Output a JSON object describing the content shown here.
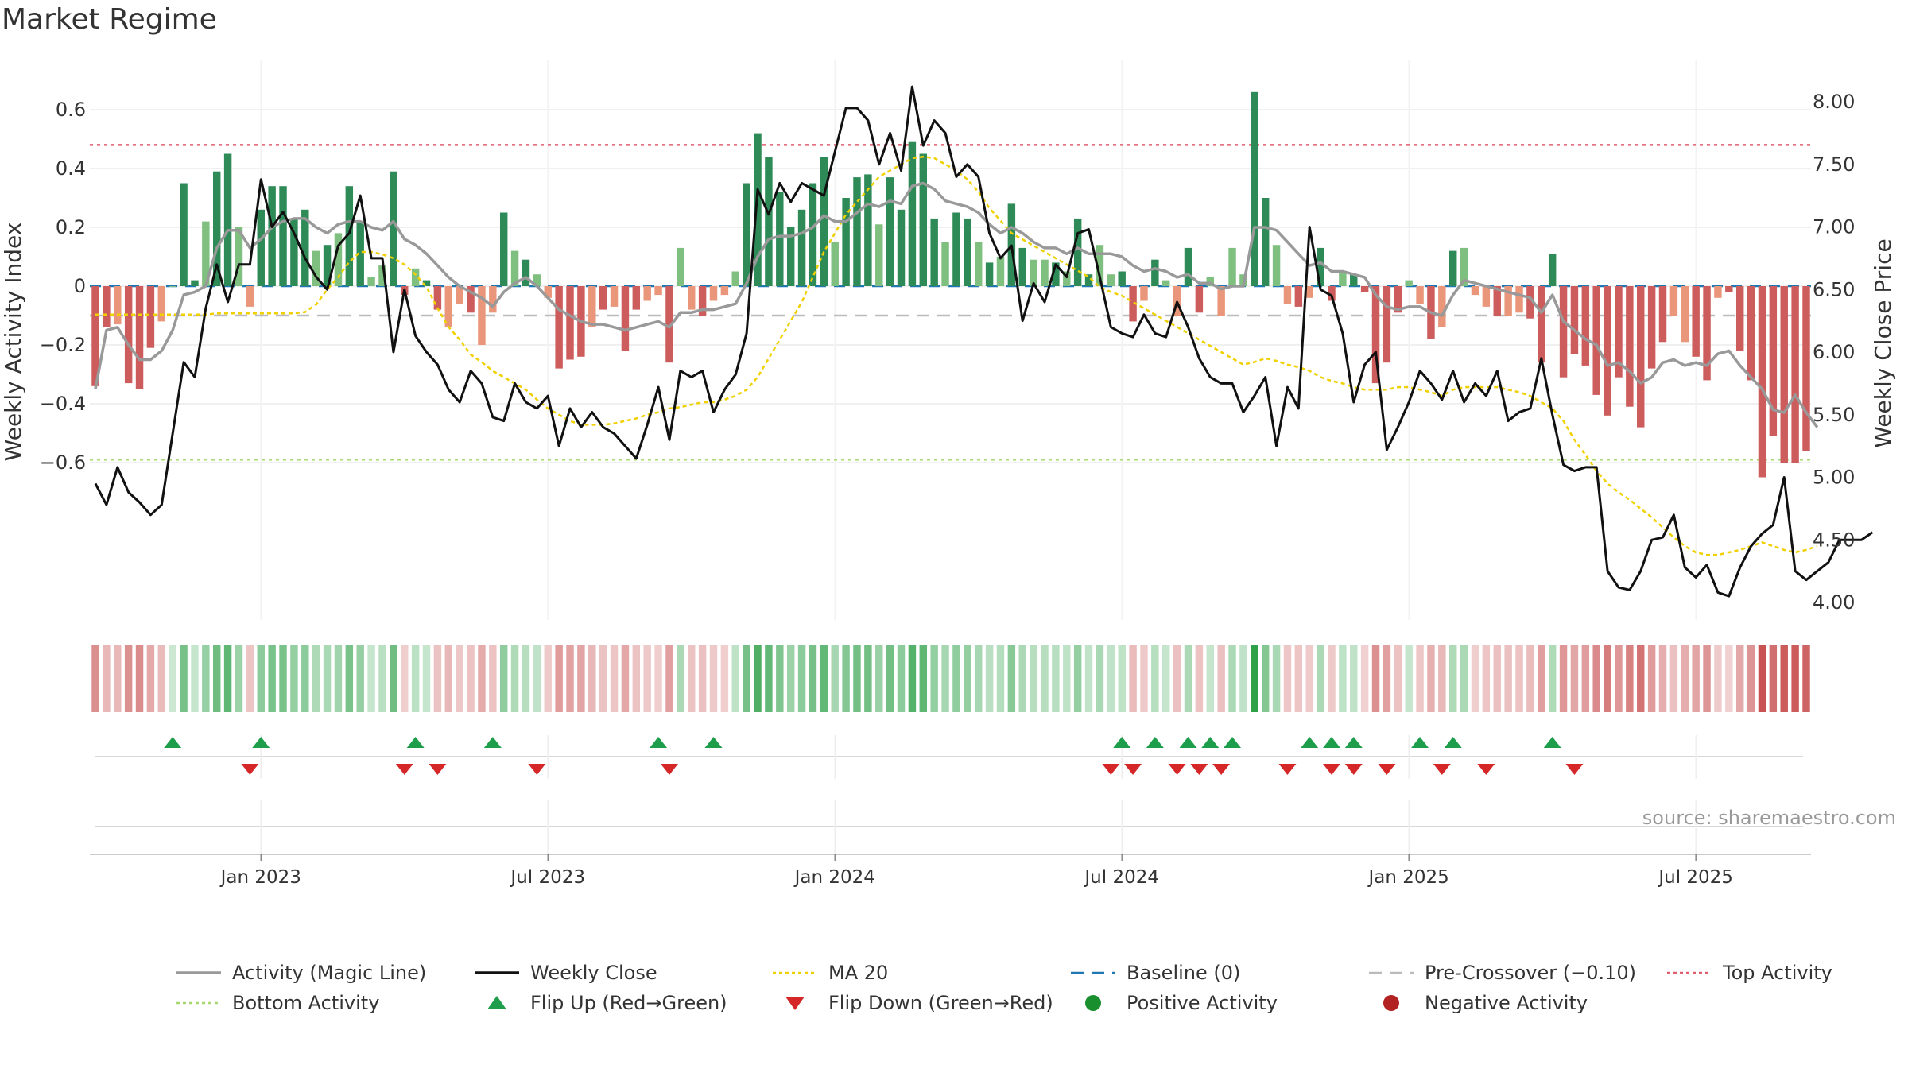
{
  "title": "Market Regime",
  "source": "source: sharemaestro.com",
  "colors": {
    "strong_green": "#2e8b57",
    "light_green": "#7fbf7f",
    "strong_red": "#cd5c5c",
    "light_red": "#e9967a",
    "magic_line": "#999999",
    "close_line": "#111111",
    "ma20": "#f0d000",
    "baseline": "#1f77b4",
    "precross": "#bbbbbb",
    "top": "#e06070",
    "bottom": "#a8d870",
    "flip_up": "#1e9e4a",
    "flip_down": "#d62728",
    "pos_activity": "#1a8f2e",
    "neg_activity": "#b22222"
  },
  "chart_data": {
    "type": "bar",
    "ylabel_left": "Weekly Activity Index",
    "ylabel_right": "Weekly Close Price",
    "ylim_left": [
      -0.7,
      0.72
    ],
    "ylim_right": [
      3.85,
      8.15
    ],
    "left_ticks": [
      {
        "v": 0.6,
        "label": "0.6"
      },
      {
        "v": 0.4,
        "label": "0.4"
      },
      {
        "v": 0.2,
        "label": "0.2"
      },
      {
        "v": 0,
        "label": "0"
      },
      {
        "v": -0.2,
        "label": "−0.2"
      },
      {
        "v": -0.4,
        "label": "−0.4"
      },
      {
        "v": -0.6,
        "label": "−0.6"
      }
    ],
    "right_ticks": [
      "8.00",
      "7.50",
      "7.00",
      "6.50",
      "6.00",
      "5.50",
      "5.00",
      "4.50",
      "4.00"
    ],
    "top_activity": 0.48,
    "bottom_activity": -0.59,
    "pre_crossover": -0.1,
    "baseline": 0,
    "x_ticks": [
      {
        "label": "Jan 2023",
        "week": 15
      },
      {
        "label": "Jul 2023",
        "week": 41
      },
      {
        "label": "Jan 2024",
        "week": 67
      },
      {
        "label": "Jul 2024",
        "week": 93
      },
      {
        "label": "Jan 2025",
        "week": 119
      },
      {
        "label": "Jul 2025",
        "week": 145
      }
    ],
    "activity": [
      -0.34,
      -0.14,
      -0.13,
      -0.33,
      -0.35,
      -0.21,
      -0.12,
      0,
      0.35,
      0.02,
      0.22,
      0.39,
      0.45,
      0.2,
      -0.07,
      0.26,
      0.34,
      0.34,
      0.23,
      0.26,
      0.12,
      0.14,
      0.18,
      0.34,
      0.22,
      0.03,
      0.07,
      0.39,
      -0.03,
      0.06,
      0.02,
      -0.08,
      -0.14,
      -0.06,
      -0.09,
      -0.2,
      -0.09,
      0.25,
      0.12,
      0.09,
      0.04,
      -0.04,
      -0.28,
      -0.25,
      -0.24,
      -0.14,
      -0.08,
      -0.07,
      -0.22,
      -0.08,
      -0.05,
      -0.03,
      -0.26,
      0.13,
      -0.08,
      -0.1,
      -0.05,
      -0.03,
      0.05,
      0.35,
      0.52,
      0.44,
      0.32,
      0.2,
      0.26,
      0.35,
      0.44,
      0.15,
      0.3,
      0.37,
      0.38,
      0.21,
      0.37,
      0.26,
      0.49,
      0.45,
      0.23,
      0.15,
      0.25,
      0.23,
      0.15,
      0.08,
      0.1,
      0.28,
      0.13,
      0.09,
      0.09,
      0.08,
      0.05,
      0.23,
      0.04,
      0.14,
      0.04,
      0.05,
      -0.12,
      -0.05,
      0.09,
      0.02,
      -0.1,
      0.13,
      -0.09,
      0.03,
      -0.1,
      0.13,
      0.04,
      0.66,
      0.3,
      0.14,
      -0.06,
      -0.07,
      -0.04,
      0.13,
      -0.05,
      0.05,
      0.04,
      -0.02,
      -0.33,
      -0.26,
      -0.09,
      0.02,
      -0.06,
      -0.18,
      -0.14,
      0.12,
      0.13,
      -0.03,
      -0.07,
      -0.1,
      -0.1,
      -0.09,
      -0.11,
      -0.26,
      0.11,
      -0.31,
      -0.23,
      -0.27,
      -0.37,
      -0.44,
      -0.31,
      -0.41,
      -0.48,
      -0.28,
      -0.19,
      -0.1,
      -0.19,
      -0.24,
      -0.32,
      -0.04,
      -0.02,
      -0.22,
      -0.32,
      -0.65,
      -0.51,
      -0.6,
      -0.6,
      -0.56
    ],
    "magic_line": [
      -0.35,
      -0.15,
      -0.14,
      -0.2,
      -0.25,
      -0.25,
      -0.22,
      -0.15,
      -0.03,
      -0.02,
      0,
      0.13,
      0.19,
      0.19,
      0.13,
      0.16,
      0.2,
      0.22,
      0.23,
      0.23,
      0.2,
      0.18,
      0.21,
      0.22,
      0.22,
      0.2,
      0.19,
      0.22,
      0.16,
      0.14,
      0.11,
      0.07,
      0.03,
      0,
      -0.02,
      -0.04,
      -0.07,
      -0.02,
      0.01,
      0.03,
      0,
      -0.04,
      -0.08,
      -0.1,
      -0.12,
      -0.13,
      -0.13,
      -0.14,
      -0.15,
      -0.14,
      -0.13,
      -0.12,
      -0.14,
      -0.09,
      -0.09,
      -0.08,
      -0.08,
      -0.07,
      -0.06,
      0.01,
      0.1,
      0.16,
      0.17,
      0.17,
      0.18,
      0.2,
      0.24,
      0.22,
      0.22,
      0.25,
      0.28,
      0.27,
      0.29,
      0.28,
      0.34,
      0.35,
      0.33,
      0.29,
      0.28,
      0.27,
      0.25,
      0.21,
      0.18,
      0.2,
      0.18,
      0.15,
      0.13,
      0.13,
      0.11,
      0.13,
      0.11,
      0.11,
      0.11,
      0.1,
      0.07,
      0.05,
      0.06,
      0.05,
      0.03,
      0.04,
      0.01,
      0.01,
      -0.01,
      0,
      0,
      0.2,
      0.2,
      0.19,
      0.15,
      0.11,
      0.07,
      0.08,
      0.05,
      0.05,
      0.04,
      0.03,
      -0.03,
      -0.07,
      -0.08,
      -0.07,
      -0.07,
      -0.09,
      -0.1,
      -0.03,
      0.02,
      0.01,
      0,
      -0.01,
      -0.02,
      -0.03,
      -0.04,
      -0.09,
      -0.03,
      -0.12,
      -0.15,
      -0.18,
      -0.2,
      -0.27,
      -0.26,
      -0.29,
      -0.33,
      -0.31,
      -0.26,
      -0.25,
      -0.27,
      -0.26,
      -0.27,
      -0.23,
      -0.22,
      -0.27,
      -0.31,
      -0.35,
      -0.42,
      -0.43,
      -0.37,
      -0.43,
      -0.48
    ],
    "weekly_close": [
      4.95,
      4.78,
      5.08,
      4.88,
      4.8,
      4.7,
      4.78,
      5.35,
      5.92,
      5.8,
      6.35,
      6.7,
      6.4,
      6.7,
      6.7,
      7.38,
      7.0,
      7.12,
      6.95,
      6.75,
      6.6,
      6.5,
      6.85,
      6.95,
      7.25,
      6.75,
      6.75,
      6.0,
      6.5,
      6.13,
      6.0,
      5.9,
      5.7,
      5.6,
      5.85,
      5.75,
      5.48,
      5.45,
      5.75,
      5.6,
      5.55,
      5.65,
      5.25,
      5.55,
      5.4,
      5.52,
      5.4,
      5.35,
      5.25,
      5.15,
      5.42,
      5.72,
      5.3,
      5.85,
      5.8,
      5.85,
      5.52,
      5.7,
      5.82,
      6.15,
      7.3,
      7.1,
      7.35,
      7.2,
      7.35,
      7.3,
      7.25,
      7.6,
      7.95,
      7.95,
      7.85,
      7.5,
      7.75,
      7.45,
      8.12,
      7.65,
      7.85,
      7.75,
      7.4,
      7.5,
      7.4,
      6.95,
      6.75,
      6.85,
      6.25,
      6.55,
      6.4,
      6.7,
      6.6,
      6.95,
      6.98,
      6.6,
      6.2,
      6.15,
      6.12,
      6.3,
      6.15,
      6.12,
      6.4,
      6.2,
      5.95,
      5.8,
      5.75,
      5.75,
      5.52,
      5.65,
      5.8,
      5.25,
      5.72,
      5.55,
      7.0,
      6.5,
      6.45,
      6.15,
      5.6,
      5.9,
      6.0,
      5.22,
      5.4,
      5.6,
      5.85,
      5.75,
      5.62,
      5.85,
      5.6,
      5.75,
      5.65,
      5.85,
      5.45,
      5.52,
      5.55,
      5.95,
      5.5,
      5.1,
      5.05,
      5.08,
      5.08,
      4.25,
      4.12,
      4.1,
      4.25,
      4.5,
      4.52,
      4.7,
      4.28,
      4.2,
      4.3,
      4.08,
      4.05,
      4.28,
      4.45,
      4.55,
      4.62,
      5.0,
      4.25,
      4.18,
      4.25,
      4.32,
      4.5,
      4.5,
      4.5,
      4.56
    ],
    "ma20": [
      6.3,
      6.3,
      6.3,
      6.3,
      6.3,
      6.3,
      6.3,
      6.3,
      6.3,
      6.3,
      6.3,
      6.31,
      6.31,
      6.31,
      6.31,
      6.31,
      6.31,
      6.31,
      6.31,
      6.32,
      6.38,
      6.5,
      6.6,
      6.72,
      6.8,
      6.8,
      6.78,
      6.75,
      6.7,
      6.62,
      6.52,
      6.35,
      6.2,
      6.1,
      5.98,
      5.92,
      5.85,
      5.8,
      5.75,
      5.7,
      5.62,
      5.55,
      5.5,
      5.45,
      5.42,
      5.42,
      5.42,
      5.43,
      5.45,
      5.47,
      5.5,
      5.52,
      5.55,
      5.56,
      5.58,
      5.6,
      5.6,
      5.62,
      5.65,
      5.7,
      5.8,
      5.95,
      6.1,
      6.25,
      6.4,
      6.6,
      6.8,
      6.95,
      7.1,
      7.2,
      7.3,
      7.4,
      7.45,
      7.5,
      7.55,
      7.56,
      7.55,
      7.5,
      7.45,
      7.38,
      7.28,
      7.15,
      7.05,
      6.95,
      6.9,
      6.85,
      6.8,
      6.75,
      6.7,
      6.65,
      6.6,
      6.52,
      6.48,
      6.45,
      6.4,
      6.35,
      6.3,
      6.25,
      6.2,
      6.15,
      6.1,
      6.05,
      6.0,
      5.95,
      5.9,
      5.92,
      5.95,
      5.93,
      5.9,
      5.88,
      5.85,
      5.8,
      5.77,
      5.75,
      5.72,
      5.7,
      5.7,
      5.7,
      5.72,
      5.72,
      5.7,
      5.68,
      5.65,
      5.7,
      5.72,
      5.72,
      5.72,
      5.72,
      5.7,
      5.68,
      5.65,
      5.6,
      5.55,
      5.45,
      5.3,
      5.18,
      5.05,
      4.95,
      4.88,
      4.82,
      4.75,
      4.68,
      4.6,
      4.52,
      4.45,
      4.4,
      4.38,
      4.38,
      4.4,
      4.42,
      4.45,
      4.48,
      4.45,
      4.42,
      4.4,
      4.42,
      4.45
    ],
    "flip_up_weeks": [
      7,
      15,
      29,
      36,
      51,
      56,
      93,
      96,
      99,
      101,
      103,
      110,
      112,
      114,
      120,
      123,
      132
    ],
    "flip_down_weeks": [
      14,
      28,
      31,
      40,
      52,
      92,
      94,
      98,
      100,
      102,
      108,
      112,
      114,
      117,
      122,
      126,
      134
    ],
    "legend": [
      {
        "label": "Activity (Magic Line)",
        "kind": "line",
        "color": "#999999"
      },
      {
        "label": "Weekly Close",
        "kind": "line",
        "color": "#111111"
      },
      {
        "label": "MA 20",
        "kind": "dotted",
        "color": "#f0d000"
      },
      {
        "label": "Baseline (0)",
        "kind": "dashed",
        "color": "#1f77b4"
      },
      {
        "label": "Pre-Crossover (−0.10)",
        "kind": "dashed",
        "color": "#bbbbbb"
      },
      {
        "label": "Top Activity",
        "kind": "dotted",
        "color": "#e06070"
      },
      {
        "label": "Bottom Activity",
        "kind": "dotted",
        "color": "#a8d870"
      },
      {
        "label": "Flip Up (Red→Green)",
        "kind": "up",
        "color": "#1e9e4a"
      },
      {
        "label": "Flip Down (Green→Red)",
        "kind": "down",
        "color": "#d62728"
      },
      {
        "label": "Positive Activity",
        "kind": "dot",
        "color": "#1a8f2e"
      },
      {
        "label": "Negative Activity",
        "kind": "dot",
        "color": "#b22222"
      }
    ]
  }
}
